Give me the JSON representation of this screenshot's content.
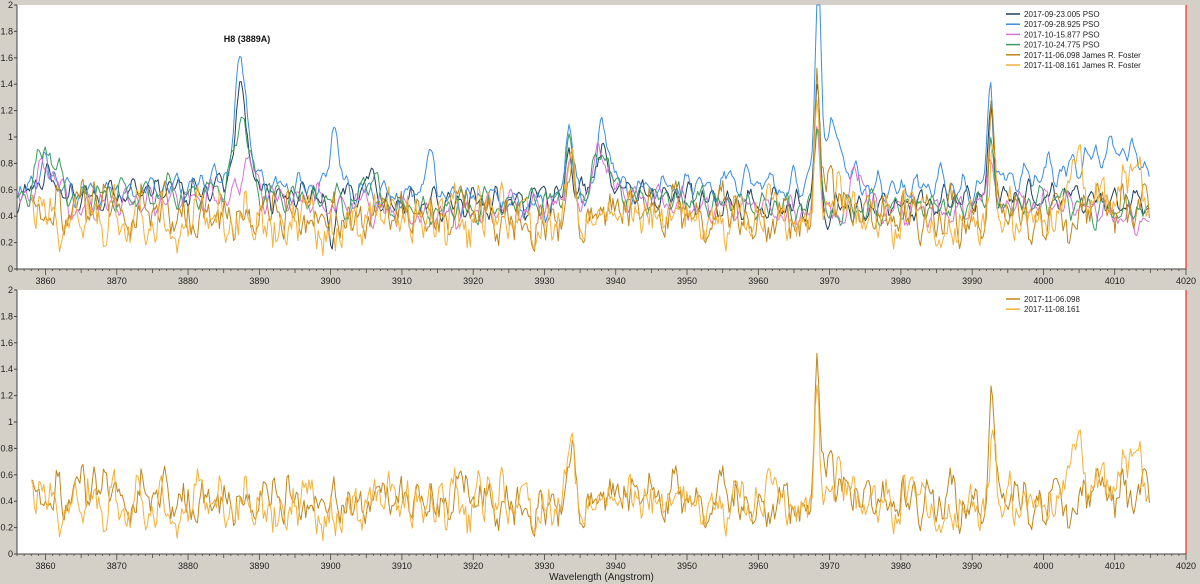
{
  "colors": {
    "background": "#d4d0c8",
    "plot_bg": "#ffffff",
    "right_border": "#ff0000"
  },
  "chart_data": [
    {
      "type": "line",
      "title": "",
      "xlabel": "",
      "ylabel": "",
      "xlim": [
        3856,
        4020
      ],
      "ylim": [
        0,
        2
      ],
      "x_ticks": [
        3860,
        3870,
        3880,
        3890,
        3900,
        3910,
        3920,
        3930,
        3940,
        3950,
        3960,
        3970,
        3980,
        3990,
        4000,
        4010,
        4020
      ],
      "y_ticks": [
        0,
        0.2,
        0.4,
        0.6,
        0.8,
        1,
        1.2,
        1.4,
        1.6,
        1.8,
        2
      ],
      "y_tick_labels": [
        "0",
        "0.2",
        "0.4",
        "0.6",
        "0.8",
        "1",
        "1.2",
        "1.4",
        "1.6",
        "1.8",
        "2"
      ],
      "legend_position": "top-right",
      "annotations": [
        {
          "text": "H8 (3889A)",
          "x": 3885,
          "y": 1.72
        }
      ],
      "series": [
        {
          "name": "2017-09-23.005  PSO",
          "color": "#1f3f5a",
          "x_start": 3856,
          "x_end": 4015,
          "baseline": 0.5,
          "noise": 0.05,
          "features": [
            [
              3860,
              0.18,
              1.8
            ],
            [
              3887.5,
              0.75,
              0.9
            ],
            [
              3900,
              -0.35,
              0.5
            ],
            [
              3905.5,
              0.2,
              1.0
            ],
            [
              3933.5,
              0.38,
              0.5
            ],
            [
              3938,
              0.3,
              1.2
            ],
            [
              3968.3,
              0.95,
              0.35
            ],
            [
              3992.6,
              0.6,
              0.4
            ]
          ],
          "samples": [
            0.5,
            0.56,
            0.62,
            0.55,
            0.48,
            0.52,
            0.58,
            0.5,
            0.46,
            0.53,
            0.57,
            0.49
          ]
        },
        {
          "name": "2017-09-28.925  PSO",
          "color": "#3b8de0",
          "x_start": 3856,
          "x_end": 4015,
          "baseline": 0.52,
          "noise": 0.05,
          "features": [
            [
              3860,
              0.2,
              1.8
            ],
            [
              3887.5,
              0.92,
              0.9
            ],
            [
              3900.5,
              0.45,
              0.6
            ],
            [
              3914,
              0.3,
              0.8
            ],
            [
              3933.5,
              0.68,
              0.5
            ],
            [
              3938.3,
              0.48,
              1.0
            ],
            [
              3968.4,
              1.42,
              0.35
            ],
            [
              3970,
              0.45,
              2.0
            ],
            [
              3992.6,
              0.72,
              0.4
            ],
            [
              4010,
              0.25,
              4.0
            ]
          ],
          "samples": [
            0.52,
            0.58,
            0.66,
            0.6,
            0.55,
            0.5,
            0.6,
            0.66,
            0.58,
            0.62,
            0.7,
            0.64
          ]
        },
        {
          "name": "2017-10-15.877  PSO",
          "color": "#d674d6",
          "x_start": 3856,
          "x_end": 4015,
          "baseline": 0.45,
          "noise": 0.05,
          "features": [
            [
              3860,
              0.25,
              1.8
            ],
            [
              3888.5,
              0.32,
              0.8
            ],
            [
              3933.5,
              0.35,
              0.5
            ],
            [
              3938,
              0.35,
              1.2
            ],
            [
              3968.3,
              0.7,
              0.4
            ],
            [
              3974,
              0.35,
              1.0
            ],
            [
              3992.6,
              0.5,
              0.4
            ]
          ],
          "samples": [
            0.45,
            0.5,
            0.56,
            0.5,
            0.42,
            0.48,
            0.52,
            0.46,
            0.4,
            0.44,
            0.5,
            0.38
          ]
        },
        {
          "name": "2017-10-24.775  PSO",
          "color": "#3a9a60",
          "x_start": 3856,
          "x_end": 4015,
          "baseline": 0.48,
          "noise": 0.05,
          "features": [
            [
              3860,
              0.4,
              1.5
            ],
            [
              3887.5,
              0.55,
              1.0
            ],
            [
              3905.5,
              0.2,
              1.0
            ],
            [
              3933.5,
              0.4,
              0.5
            ],
            [
              3938,
              0.35,
              1.2
            ],
            [
              3968.3,
              0.75,
              0.4
            ],
            [
              3992.6,
              0.55,
              0.4
            ]
          ],
          "samples": [
            0.48,
            0.55,
            0.6,
            0.52,
            0.45,
            0.5,
            0.55,
            0.48,
            0.44,
            0.46,
            0.52,
            0.4
          ]
        },
        {
          "name": "2017-11-06.098  James R. Foster",
          "color": "#c0861a",
          "x_start": 3858,
          "x_end": 4015,
          "baseline": 0.42,
          "noise": 0.14,
          "features": [
            [
              3933.8,
              0.45,
              0.4
            ],
            [
              3968.2,
              0.9,
              0.35
            ],
            [
              3969.5,
              0.3,
              0.8
            ],
            [
              3992.8,
              0.68,
              0.4
            ]
          ],
          "samples": [
            0.42,
            0.46,
            0.4,
            0.44,
            0.45,
            0.4,
            0.43,
            0.38,
            0.42,
            0.4,
            0.44,
            0.45
          ]
        },
        {
          "name": "2017-11-08.161  James R. Foster",
          "color": "#f3b13a",
          "x_start": 3858,
          "x_end": 4015,
          "baseline": 0.4,
          "noise": 0.17,
          "features": [
            [
              3933.8,
              0.35,
              0.4
            ],
            [
              3968.2,
              0.7,
              0.35
            ],
            [
              3992.8,
              0.5,
              0.4
            ],
            [
              4005,
              0.35,
              1.5
            ],
            [
              4012,
              0.3,
              1.5
            ]
          ],
          "samples": [
            0.4,
            0.42,
            0.38,
            0.36,
            0.42,
            0.4,
            0.38,
            0.35,
            0.4,
            0.34,
            0.4,
            0.45
          ]
        }
      ]
    },
    {
      "type": "line",
      "title": "",
      "xlabel": "Wavelength (Angstrom)",
      "ylabel": "",
      "xlim": [
        3856,
        4020
      ],
      "ylim": [
        0,
        2
      ],
      "x_ticks": [
        3860,
        3870,
        3880,
        3890,
        3900,
        3910,
        3920,
        3930,
        3940,
        3950,
        3960,
        3970,
        3980,
        3990,
        4000,
        4010,
        4020
      ],
      "y_ticks": [
        0,
        0.2,
        0.4,
        0.6,
        0.8,
        1,
        1.2,
        1.4,
        1.6,
        1.8,
        2
      ],
      "y_tick_labels": [
        "0",
        "0.2",
        "0.4",
        "0.6",
        "0.8",
        "1",
        "1.2",
        "1.4",
        "1.6",
        "1.8",
        "2"
      ],
      "legend_position": "top-right",
      "annotations": [],
      "series": [
        {
          "name": "2017-11-06.098",
          "color": "#c0861a",
          "x_start": 3858,
          "x_end": 4015,
          "baseline": 0.42,
          "noise": 0.14,
          "features": [
            [
              3933.8,
              0.45,
              0.4
            ],
            [
              3968.2,
              0.9,
              0.35
            ],
            [
              3969.5,
              0.3,
              0.8
            ],
            [
              3992.8,
              0.68,
              0.4
            ]
          ],
          "samples": [
            0.42,
            0.46,
            0.4,
            0.44,
            0.45,
            0.4,
            0.43,
            0.38,
            0.42,
            0.4,
            0.44,
            0.45
          ]
        },
        {
          "name": "2017-11-08.161",
          "color": "#f3b13a",
          "x_start": 3858,
          "x_end": 4015,
          "baseline": 0.4,
          "noise": 0.17,
          "features": [
            [
              3933.8,
              0.35,
              0.4
            ],
            [
              3968.2,
              0.7,
              0.35
            ],
            [
              3992.8,
              0.5,
              0.4
            ],
            [
              4005,
              0.35,
              1.5
            ],
            [
              4012,
              0.3,
              1.5
            ]
          ],
          "samples": [
            0.4,
            0.42,
            0.38,
            0.36,
            0.42,
            0.4,
            0.38,
            0.35,
            0.4,
            0.34,
            0.4,
            0.45
          ]
        }
      ]
    }
  ]
}
